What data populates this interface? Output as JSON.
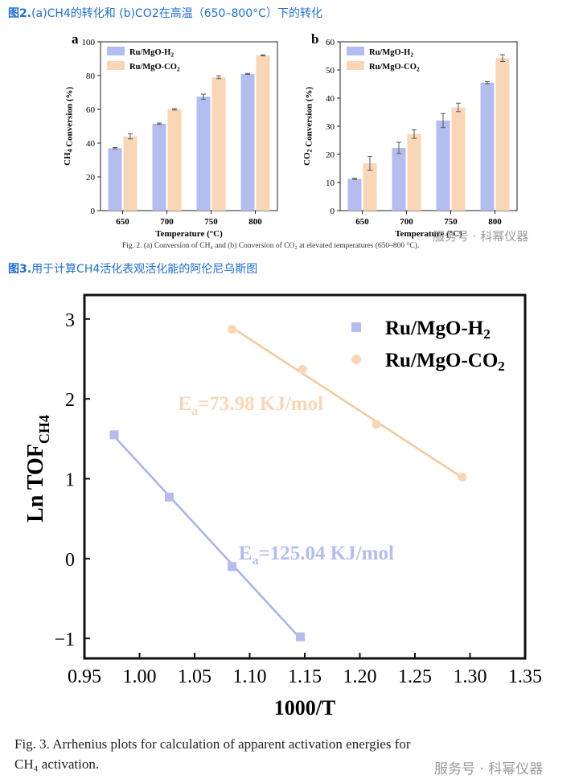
{
  "headings": {
    "fig2_num": "图2.",
    "fig2_text": "(a)CH4的转化和 (b)CO2在高温（650–800°C）下的转化",
    "fig3_num": "图3.",
    "fig3_text": "用于计算CH4活化表观活化能的阿伦尼乌斯图"
  },
  "fig2_caption": "Fig. 2. (a) Conversion of CH₄ and (b) Conversion of CO₂ at elevated temperatures (650–800 °C).",
  "fig3_caption_line1": "Fig. 3. Arrhenius plots for calculation of apparent activation energies for",
  "fig3_caption_line2": "CH₄ activation.",
  "watermark": "服务号 · 科幂仪器",
  "colors": {
    "h2": "#b3bdf0",
    "co2": "#f9d6b6",
    "h2_line": "#a6b2ea",
    "co2_line": "#f5c89a",
    "heading": "#1e6fd9"
  },
  "chart_data": [
    {
      "id": "a",
      "panel_label": "a",
      "type": "bar",
      "categories": [
        "650",
        "700",
        "750",
        "800"
      ],
      "xlabel": "Temperature (°C)",
      "ylabel": "CH4 Conversion (%)",
      "ylim": [
        0,
        100
      ],
      "yticks": [
        0,
        20,
        40,
        60,
        80,
        100
      ],
      "legend_position": "top-left",
      "series": [
        {
          "name": "Ru/MgO-H2",
          "values": [
            37,
            51.5,
            67.5,
            81
          ],
          "errors": [
            0.4,
            0.4,
            1.5,
            0.3
          ]
        },
        {
          "name": "Ru/MgO-CO2",
          "values": [
            44,
            60,
            79,
            92
          ],
          "errors": [
            1.5,
            0.4,
            0.8,
            0.3
          ]
        }
      ]
    },
    {
      "id": "b",
      "panel_label": "b",
      "type": "bar",
      "categories": [
        "650",
        "700",
        "750",
        "800"
      ],
      "xlabel": "Temperature (°C)",
      "ylabel": "CO2 Conversion (%)",
      "ylim": [
        0,
        60
      ],
      "yticks": [
        0,
        10,
        20,
        30,
        40,
        50,
        60
      ],
      "legend_position": "top-left",
      "series": [
        {
          "name": "Ru/MgO-H2",
          "values": [
            11.3,
            22.3,
            32,
            45.5
          ],
          "errors": [
            0.2,
            2,
            2.5,
            0.4
          ]
        },
        {
          "name": "Ru/MgO-CO2",
          "values": [
            16.8,
            27.2,
            36.7,
            54.2
          ],
          "errors": [
            2.5,
            1.5,
            1.5,
            1.2
          ]
        }
      ]
    },
    {
      "id": "c",
      "type": "scatter",
      "xlabel": "1000/T",
      "ylabel": "Ln TOF_CH4",
      "xlim": [
        0.95,
        1.35
      ],
      "ylim": [
        -1.25,
        3.3
      ],
      "xticks": [
        "0.95",
        "1.00",
        "1.05",
        "1.10",
        "1.15",
        "1.20",
        "1.25",
        "1.30",
        "1.35"
      ],
      "yticks": [
        "−1",
        "0",
        "1",
        "2",
        "3"
      ],
      "legend_position": "top-right",
      "series": [
        {
          "name": "Ru/MgO-H2",
          "marker": "square",
          "x": [
            0.977,
            1.027,
            1.084,
            1.146
          ],
          "y": [
            1.55,
            0.77,
            -0.1,
            -0.98
          ],
          "fit_label": "Ea=125.04 KJ/mol"
        },
        {
          "name": "Ru/MgO-CO2",
          "marker": "circle",
          "x": [
            1.084,
            1.148,
            1.215,
            1.293
          ],
          "y": [
            2.87,
            2.37,
            1.68,
            1.02
          ],
          "fit_label": "Ea=73.98 KJ/mol"
        }
      ]
    }
  ]
}
